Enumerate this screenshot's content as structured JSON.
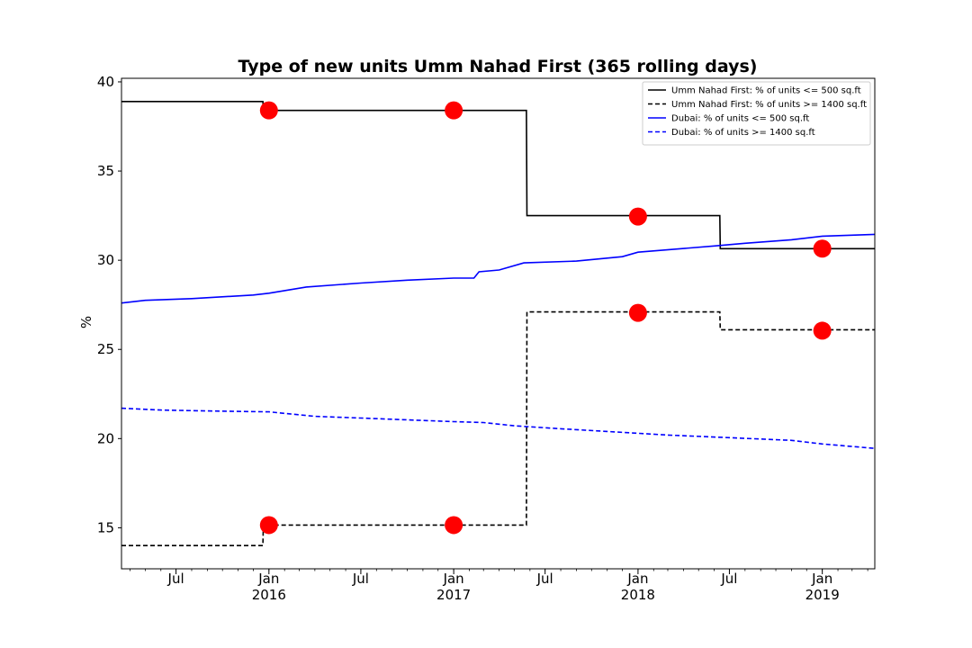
{
  "chart_data": {
    "type": "line",
    "title": "Type of new units Umm Nahad First (365 rolling days)",
    "xlabel": "",
    "ylabel": "%",
    "xlim": [
      "2015-03-15",
      "2019-04-15"
    ],
    "ylim": [
      12.7,
      40.2
    ],
    "yticks": [
      15,
      20,
      25,
      30,
      35,
      40
    ],
    "xticks": [
      {
        "date": "2015-07-01",
        "label": "Jul",
        "year": ""
      },
      {
        "date": "2016-01-01",
        "label": "Jan",
        "year": "2016"
      },
      {
        "date": "2016-07-01",
        "label": "Jul",
        "year": ""
      },
      {
        "date": "2017-01-01",
        "label": "Jan",
        "year": "2017"
      },
      {
        "date": "2017-07-01",
        "label": "Jul",
        "year": ""
      },
      {
        "date": "2018-01-01",
        "label": "Jan",
        "year": "2018"
      },
      {
        "date": "2018-07-01",
        "label": "Jul",
        "year": ""
      },
      {
        "date": "2019-01-01",
        "label": "Jan",
        "year": "2019"
      }
    ],
    "minor_ticks": "monthly",
    "grid": false,
    "legend_position": "top-right",
    "series": [
      {
        "name": "Umm Nahad First: % of units <= 500 sq.ft",
        "color": "#000000",
        "linestyle": "solid",
        "step": true,
        "points": [
          [
            "2015-03-15",
            38.9
          ],
          [
            "2015-12-20",
            38.9
          ],
          [
            "2015-12-21",
            38.4
          ],
          [
            "2017-05-25",
            38.4
          ],
          [
            "2017-05-26",
            32.5
          ],
          [
            "2018-06-12",
            32.5
          ],
          [
            "2018-06-13",
            30.65
          ],
          [
            "2019-04-15",
            30.65
          ]
        ]
      },
      {
        "name": "Umm Nahad First: % of units >= 1400 sq.ft",
        "color": "#000000",
        "linestyle": "dashed",
        "step": true,
        "points": [
          [
            "2015-03-15",
            14.0
          ],
          [
            "2015-12-20",
            14.0
          ],
          [
            "2015-12-21",
            15.15
          ],
          [
            "2017-05-25",
            15.15
          ],
          [
            "2017-05-26",
            27.1
          ],
          [
            "2018-06-12",
            27.1
          ],
          [
            "2018-06-13",
            26.1
          ],
          [
            "2019-04-15",
            26.1
          ]
        ]
      },
      {
        "name": "Dubai: % of units <= 500 sq.ft",
        "color": "#0000ff",
        "linestyle": "solid",
        "step": false,
        "points": [
          [
            "2015-03-15",
            27.6
          ],
          [
            "2015-05-01",
            27.75
          ],
          [
            "2015-08-01",
            27.85
          ],
          [
            "2015-12-01",
            28.05
          ],
          [
            "2016-01-01",
            28.15
          ],
          [
            "2016-03-15",
            28.5
          ],
          [
            "2016-07-01",
            28.72
          ],
          [
            "2016-10-01",
            28.88
          ],
          [
            "2017-01-01",
            29.0
          ],
          [
            "2017-02-10",
            29.0
          ],
          [
            "2017-02-20",
            29.35
          ],
          [
            "2017-04-01",
            29.45
          ],
          [
            "2017-05-20",
            29.85
          ],
          [
            "2017-09-01",
            29.95
          ],
          [
            "2017-12-01",
            30.2
          ],
          [
            "2018-01-01",
            30.45
          ],
          [
            "2018-06-01",
            30.8
          ],
          [
            "2018-08-01",
            30.95
          ],
          [
            "2018-11-01",
            31.15
          ],
          [
            "2019-01-01",
            31.35
          ],
          [
            "2019-04-15",
            31.45
          ]
        ]
      },
      {
        "name": "Dubai: % of units >= 1400 sq.ft",
        "color": "#0000ff",
        "linestyle": "dashed",
        "step": false,
        "points": [
          [
            "2015-03-15",
            21.7
          ],
          [
            "2015-06-01",
            21.6
          ],
          [
            "2015-09-01",
            21.55
          ],
          [
            "2016-01-01",
            21.5
          ],
          [
            "2016-04-01",
            21.25
          ],
          [
            "2016-07-01",
            21.15
          ],
          [
            "2016-10-01",
            21.05
          ],
          [
            "2017-01-01",
            20.95
          ],
          [
            "2017-03-01",
            20.9
          ],
          [
            "2017-05-01",
            20.72
          ],
          [
            "2017-08-01",
            20.55
          ],
          [
            "2017-12-01",
            20.35
          ],
          [
            "2018-03-01",
            20.2
          ],
          [
            "2018-07-01",
            20.05
          ],
          [
            "2018-11-01",
            19.9
          ],
          [
            "2019-01-01",
            19.7
          ],
          [
            "2019-04-15",
            19.45
          ]
        ]
      }
    ],
    "markers": {
      "color": "#ff0000",
      "shape": "circle",
      "points": [
        [
          "2016-01-01",
          38.4
        ],
        [
          "2017-01-01",
          38.4
        ],
        [
          "2018-01-01",
          32.45
        ],
        [
          "2019-01-01",
          30.65
        ],
        [
          "2016-01-01",
          15.15
        ],
        [
          "2017-01-01",
          15.15
        ],
        [
          "2018-01-01",
          27.05
        ],
        [
          "2019-01-01",
          26.05
        ]
      ]
    }
  }
}
